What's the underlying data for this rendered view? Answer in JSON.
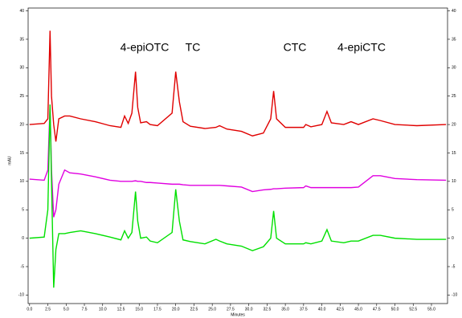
{
  "chart_data": {
    "type": "line",
    "xlabel": "Minutes",
    "ylabel": "mAU",
    "annotations": [
      "4-epiOTC",
      "TC",
      "CTC",
      "4-epiCTC"
    ],
    "x": [
      0,
      2,
      2.5,
      2.8,
      3.0,
      3.3,
      3.6,
      4,
      4.8,
      5.5,
      7,
      9,
      11,
      12.5,
      13,
      13.5,
      14,
      14.5,
      14.8,
      15.2,
      16,
      16.5,
      17.5,
      19.5,
      20,
      20.5,
      21,
      22,
      24,
      25.5,
      26,
      27,
      29,
      30.5,
      32,
      33,
      33.4,
      33.8,
      35,
      37.5,
      37.8,
      38.5,
      40,
      40.7,
      41.3,
      43,
      44,
      45,
      47,
      48,
      50,
      53,
      57
    ],
    "series": [
      {
        "color": "#e00000",
        "values": [
          20,
          20.2,
          21,
          36.5,
          25,
          20,
          17,
          21,
          21.5,
          21.5,
          21,
          20.5,
          19.8,
          19.5,
          21.5,
          20.2,
          22,
          29.3,
          23,
          20.3,
          20.5,
          20,
          19.8,
          22,
          29.3,
          24,
          20.5,
          19.7,
          19.3,
          19.5,
          19.8,
          19.2,
          18.8,
          18,
          18.5,
          21,
          25.9,
          21,
          19.5,
          19.5,
          20,
          19.6,
          20,
          22.3,
          20.3,
          20,
          20.5,
          20,
          21,
          20.7,
          20,
          19.8,
          20
        ]
      },
      {
        "color": "#e000e0",
        "values": [
          10.4,
          10.2,
          12,
          23.5,
          12,
          3.7,
          5,
          9.5,
          12,
          11.5,
          11.3,
          10.8,
          10.2,
          10,
          10,
          10,
          10,
          10.1,
          10,
          10,
          9.8,
          9.8,
          9.7,
          9.5,
          9.5,
          9.5,
          9.4,
          9.3,
          9.3,
          9.3,
          9.3,
          9.2,
          9,
          8.2,
          8.5,
          8.6,
          8.7,
          8.7,
          8.8,
          8.9,
          9.2,
          8.9,
          8.9,
          8.9,
          8.9,
          8.9,
          8.9,
          9,
          11,
          11,
          10.5,
          10.3,
          10.2
        ]
      },
      {
        "color": "#00e000",
        "values": [
          0,
          0.2,
          5,
          23.5,
          10,
          -8.7,
          -2,
          0.8,
          0.8,
          1,
          1.3,
          0.8,
          0.2,
          -0.3,
          1.3,
          0,
          1,
          8.2,
          3,
          0,
          0.2,
          -0.5,
          -0.8,
          1,
          8.6,
          3,
          -0.3,
          -0.6,
          -1,
          -0.2,
          -0.5,
          -1,
          -1.4,
          -2.2,
          -1.5,
          0,
          4.8,
          0,
          -1,
          -1,
          -0.8,
          -1,
          -0.5,
          1.5,
          -0.5,
          -0.8,
          -0.5,
          -0.5,
          0.5,
          0.5,
          0,
          -0.2,
          -0.2
        ]
      }
    ],
    "xlim": [
      -0.2,
      57.2
    ],
    "ylim": [
      -11.5,
      40.5
    ],
    "xticks": [
      {
        "value": 0,
        "label": "0.0"
      },
      {
        "value": 2.5,
        "label": "2.5"
      },
      {
        "value": 5,
        "label": "5.0"
      },
      {
        "value": 7.5,
        "label": "7.5"
      },
      {
        "value": 10,
        "label": "10.0"
      },
      {
        "value": 12.5,
        "label": "12.5"
      },
      {
        "value": 15,
        "label": "15.0"
      },
      {
        "value": 17.5,
        "label": "17.5"
      },
      {
        "value": 20,
        "label": "20.0"
      },
      {
        "value": 22.5,
        "label": "22.5"
      },
      {
        "value": 25,
        "label": "25.0"
      },
      {
        "value": 27.5,
        "label": "27.5"
      },
      {
        "value": 30,
        "label": "30.0"
      },
      {
        "value": 32.5,
        "label": "32.5"
      },
      {
        "value": 35,
        "label": "35.0"
      },
      {
        "value": 37.5,
        "label": "37.5"
      },
      {
        "value": 40,
        "label": "40.0"
      },
      {
        "value": 42.5,
        "label": "42.5"
      },
      {
        "value": 45,
        "label": "45.0"
      },
      {
        "value": 47.5,
        "label": "47.5"
      },
      {
        "value": 50,
        "label": "50.0"
      },
      {
        "value": 52.5,
        "label": "52.5"
      },
      {
        "value": 55,
        "label": "55.0"
      }
    ],
    "yticks": [
      40,
      35,
      30,
      25,
      20,
      15,
      10,
      5,
      0,
      -5,
      -10
    ]
  }
}
